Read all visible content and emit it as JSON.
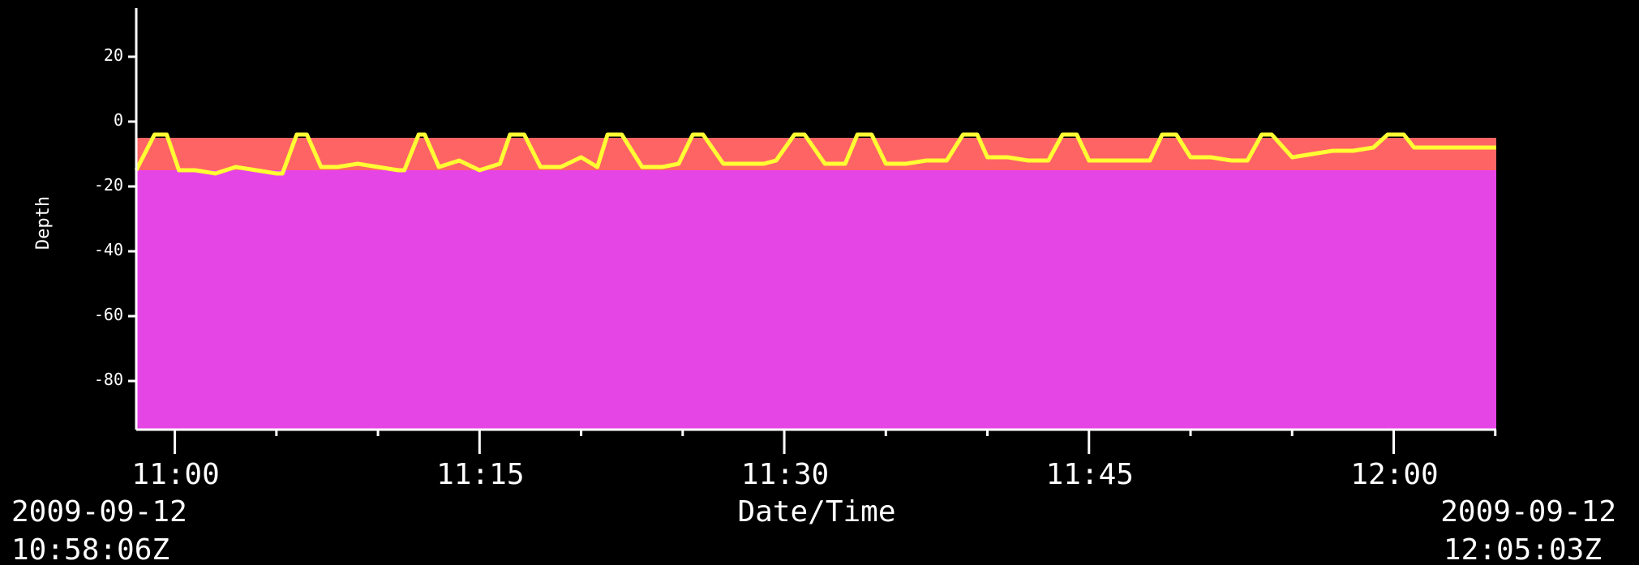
{
  "chart_data": {
    "type": "area",
    "xlabel": "Date/Time",
    "ylabel": "Depth",
    "x_start": "2009-09-12T10:58:06Z",
    "x_end": "2009-09-12T12:05:03Z",
    "start_label": {
      "date": "2009-09-12",
      "time": "10:58:06Z"
    },
    "end_label": {
      "date": "2009-09-12",
      "time": "12:05:03Z"
    },
    "xticks": [
      "11:00",
      "11:15",
      "11:30",
      "11:45",
      "12:00"
    ],
    "yticks": [
      "20",
      "0",
      "-20",
      "-40",
      "-60",
      "-80"
    ],
    "ylim": [
      -95,
      35
    ],
    "grid": false,
    "legend": "none",
    "colors": {
      "background": "#000000",
      "surface_band": "#ff6464",
      "water_column": "#e645e6",
      "depth_line": "#ffff33",
      "axes": "#ffffff"
    },
    "bands": [
      {
        "top": -5,
        "bottom": -15,
        "color": "#ff6464"
      },
      {
        "top": -15,
        "bottom": -95,
        "color": "#e645e6"
      }
    ],
    "series": [
      {
        "x": [
          "10:58:06",
          "10:59:00",
          "10:59:36",
          "11:00:12",
          "11:01:00",
          "11:02:00",
          "11:03:00",
          "11:04:00",
          "11:05:00",
          "11:05:18",
          "11:06:00",
          "11:06:30",
          "11:07:12",
          "11:08:00",
          "11:09:00",
          "11:10:00",
          "11:11:00",
          "11:11:18",
          "11:12:00",
          "11:12:18",
          "11:13:00",
          "11:14:00",
          "11:15:00",
          "11:16:00",
          "11:16:30",
          "11:17:12",
          "11:18:00",
          "11:19:00",
          "11:20:00",
          "11:20:48",
          "11:21:18",
          "11:22:00",
          "11:23:00",
          "11:24:00",
          "11:24:48",
          "11:25:30",
          "11:26:00",
          "11:27:00",
          "11:28:00",
          "11:29:00",
          "11:29:36",
          "11:30:30",
          "11:31:00",
          "11:32:00",
          "11:33:00",
          "11:33:36",
          "11:34:18",
          "11:35:00",
          "11:36:00",
          "11:37:00",
          "11:38:00",
          "11:38:48",
          "11:39:30",
          "11:40:00",
          "11:41:00",
          "11:42:00",
          "11:43:00",
          "11:43:42",
          "11:44:24",
          "11:45:00",
          "11:46:00",
          "11:47:00",
          "11:48:00",
          "11:48:36",
          "11:49:18",
          "11:50:00",
          "11:51:00",
          "11:52:00",
          "11:52:48",
          "11:53:30",
          "11:54:00",
          "11:55:00",
          "11:56:00",
          "11:57:00",
          "11:58:00",
          "11:59:00",
          "11:59:42",
          "12:00:30",
          "12:01:00",
          "12:02:00",
          "12:03:00",
          "12:04:00",
          "12:05:03"
        ],
        "y": [
          -15,
          -4,
          -4,
          -15,
          -15,
          -16,
          -14,
          -15,
          -16,
          -16,
          -4,
          -4,
          -14,
          -14,
          -13,
          -14,
          -15,
          -15,
          -4,
          -4,
          -14,
          -12,
          -15,
          -13,
          -4,
          -4,
          -14,
          -14,
          -11,
          -14,
          -4,
          -4,
          -14,
          -14,
          -13,
          -4,
          -4,
          -13,
          -13,
          -13,
          -12,
          -4,
          -4,
          -13,
          -13,
          -4,
          -4,
          -13,
          -13,
          -12,
          -12,
          -4,
          -4,
          -11,
          -11,
          -12,
          -12,
          -4,
          -4,
          -12,
          -12,
          -12,
          -12,
          -4,
          -4,
          -11,
          -11,
          -12,
          -12,
          -4,
          -4,
          -11,
          -10,
          -9,
          -9,
          -8,
          -4,
          -4,
          -8,
          -8,
          -8,
          -8,
          -8
        ]
      }
    ]
  }
}
